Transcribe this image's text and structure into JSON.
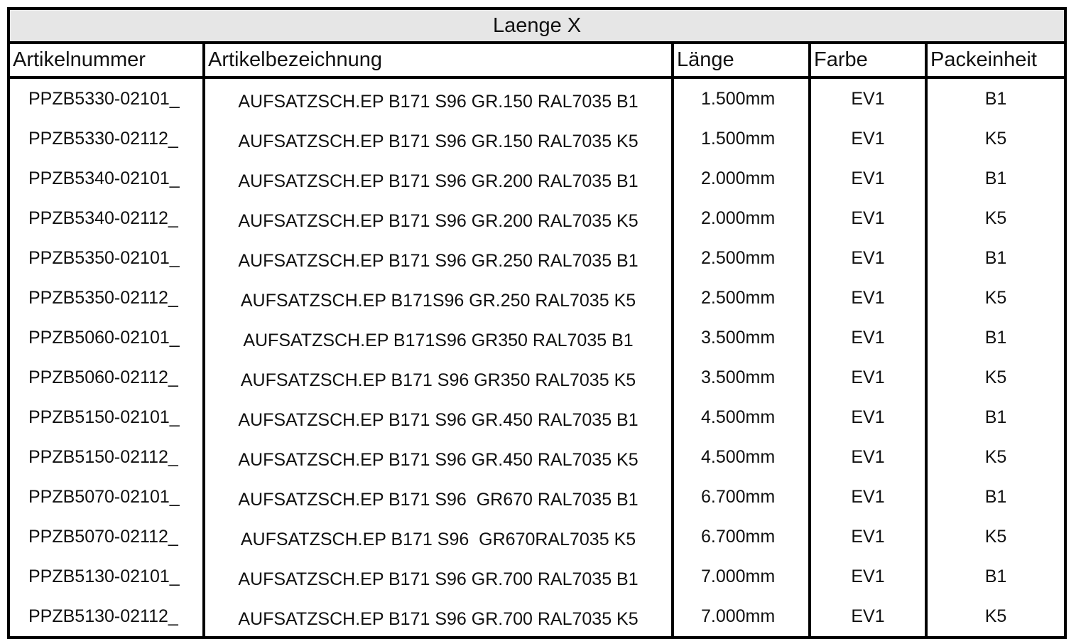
{
  "table": {
    "title": "Laenge X",
    "headers": [
      "Artikelnummer",
      "Artikelbezeichnung",
      "Länge",
      "Farbe",
      "Packeinheit"
    ],
    "rows": [
      [
        "PPZB5330-02101_",
        "AUFSATZSCH.EP B171 S96 GR.150 RAL7035 B1",
        "1.500mm",
        "EV1",
        "B1"
      ],
      [
        "PPZB5330-02112_",
        "AUFSATZSCH.EP B171 S96 GR.150 RAL7035 K5",
        "1.500mm",
        "EV1",
        "K5"
      ],
      [
        "PPZB5340-02101_",
        "AUFSATZSCH.EP B171 S96 GR.200 RAL7035 B1",
        "2.000mm",
        "EV1",
        "B1"
      ],
      [
        "PPZB5340-02112_",
        "AUFSATZSCH.EP B171 S96 GR.200 RAL7035 K5",
        "2.000mm",
        "EV1",
        "K5"
      ],
      [
        "PPZB5350-02101_",
        "AUFSATZSCH.EP B171 S96 GR.250 RAL7035 B1",
        "2.500mm",
        "EV1",
        "B1"
      ],
      [
        "PPZB5350-02112_",
        "AUFSATZSCH.EP B171S96 GR.250 RAL7035 K5",
        "2.500mm",
        "EV1",
        "K5"
      ],
      [
        "PPZB5060-02101_",
        "AUFSATZSCH.EP B171S96 GR350 RAL7035 B1",
        "3.500mm",
        "EV1",
        "B1"
      ],
      [
        "PPZB5060-02112_",
        "AUFSATZSCH.EP B171 S96 GR350 RAL7035 K5",
        "3.500mm",
        "EV1",
        "K5"
      ],
      [
        "PPZB5150-02101_",
        "AUFSATZSCH.EP B171 S96 GR.450 RAL7035 B1",
        "4.500mm",
        "EV1",
        "B1"
      ],
      [
        "PPZB5150-02112_",
        "AUFSATZSCH.EP B171 S96 GR.450 RAL7035 K5",
        "4.500mm",
        "EV1",
        "K5"
      ],
      [
        "PPZB5070-02101_",
        "AUFSATZSCH.EP B171 S96  GR670 RAL7035 B1",
        "6.700mm",
        "EV1",
        "B1"
      ],
      [
        "PPZB5070-02112_",
        "AUFSATZSCH.EP B171 S96  GR670RAL7035 K5",
        "6.700mm",
        "EV1",
        "K5"
      ],
      [
        "PPZB5130-02101_",
        "AUFSATZSCH.EP B171 S96 GR.700 RAL7035 B1",
        "7.000mm",
        "EV1",
        "B1"
      ],
      [
        "PPZB5130-02112_",
        "AUFSATZSCH.EP B171 S96 GR.700 RAL7035 K5",
        "7.000mm",
        "EV1",
        "K5"
      ]
    ]
  }
}
